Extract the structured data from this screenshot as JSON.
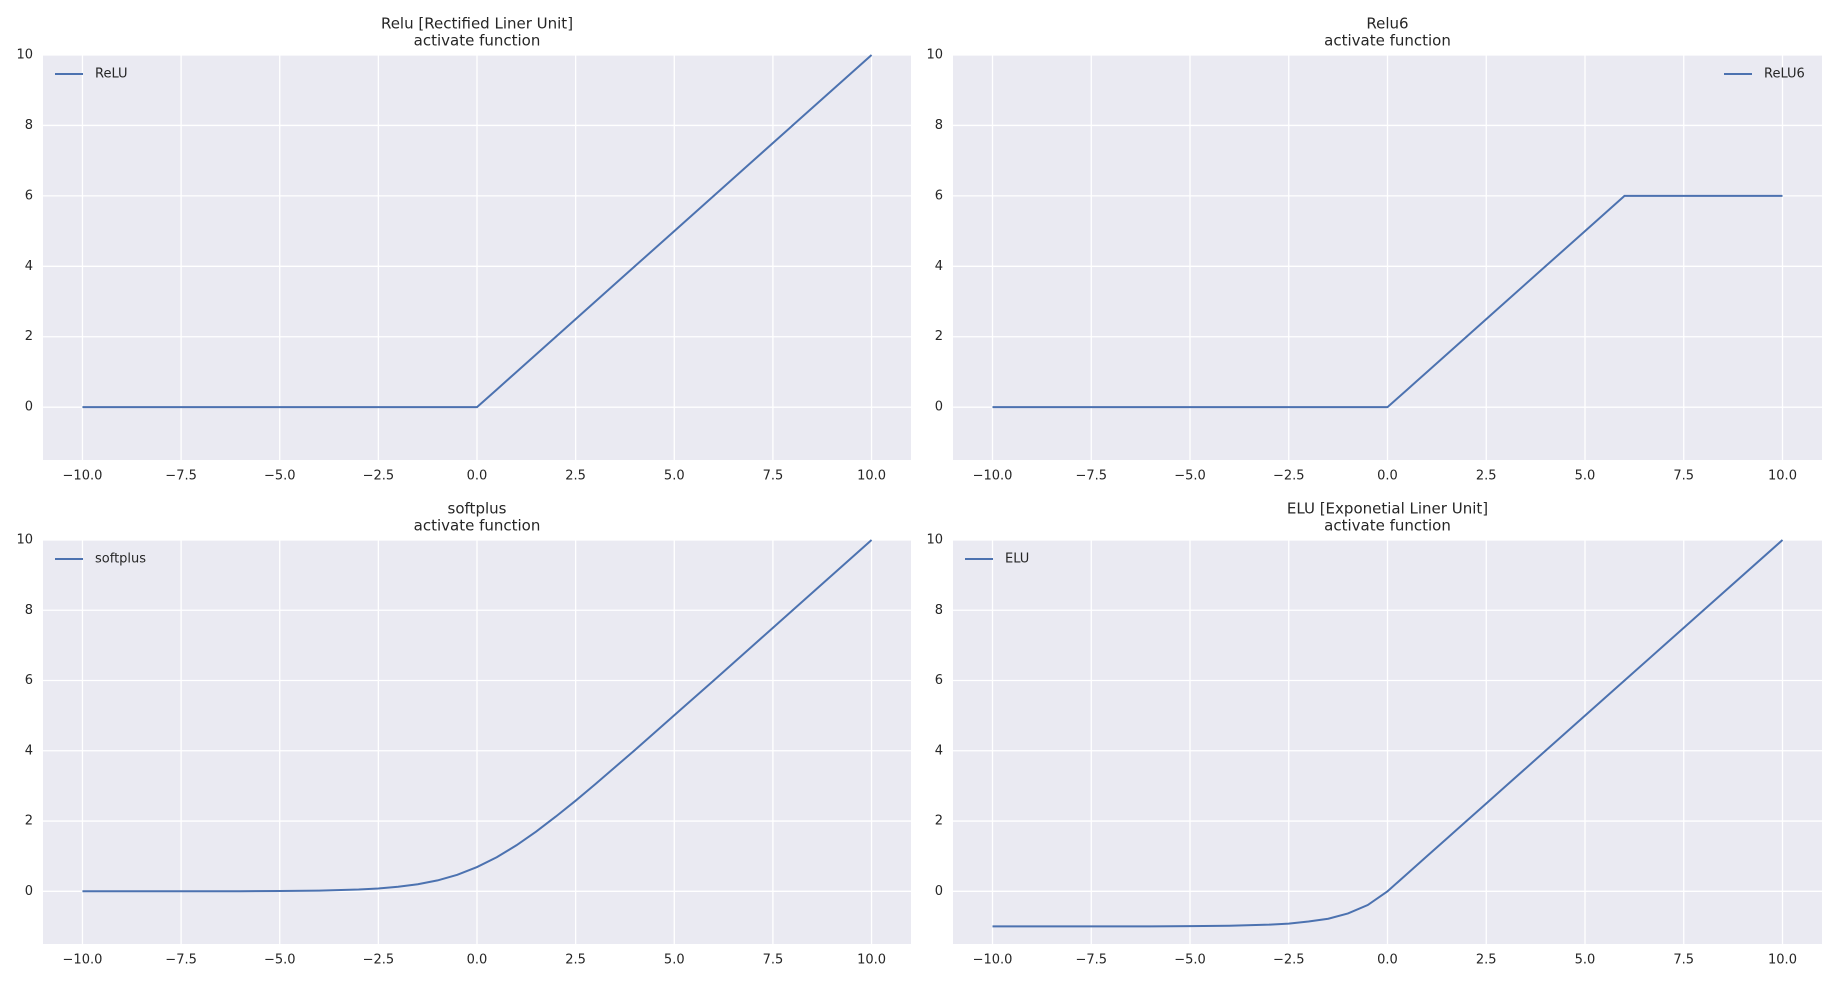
{
  "chart_data": [
    {
      "type": "line",
      "title": "Relu [Rectified Liner Unit]",
      "subtitle": "activate function",
      "x": [
        -10,
        -8,
        -6,
        -5,
        -4,
        -3,
        -2.5,
        -2,
        -1.5,
        -1,
        -0.5,
        0,
        0.5,
        1,
        1.5,
        2,
        2.5,
        3,
        4,
        5,
        6,
        7,
        8,
        10
      ],
      "series": [
        {
          "name": "ReLU",
          "color": "#4c72b0",
          "values": [
            0,
            0,
            0,
            0,
            0,
            0,
            0,
            0,
            0,
            0,
            0,
            0,
            0.5,
            1,
            1.5,
            2,
            2.5,
            3,
            4,
            5,
            6,
            7,
            8,
            10
          ]
        }
      ],
      "xlim": [
        -11,
        11
      ],
      "ylim": [
        -1.5,
        10
      ],
      "xticks": [
        {
          "value": -10,
          "label": "−10.0"
        },
        {
          "value": -7.5,
          "label": "−7.5"
        },
        {
          "value": -5,
          "label": "−5.0"
        },
        {
          "value": -2.5,
          "label": "−2.5"
        },
        {
          "value": 0,
          "label": "0.0"
        },
        2.5,
        {
          "value": 5,
          "label": "5.0"
        },
        7.5,
        {
          "value": 10,
          "label": "10.0"
        }
      ],
      "yticks": [
        0,
        2,
        4,
        6,
        8,
        10
      ],
      "grid": true,
      "legend": "upper left"
    },
    {
      "type": "line",
      "title": "Relu6",
      "subtitle": "activate function",
      "x": [
        -10,
        -8,
        -6,
        -5,
        -4,
        -3,
        -2.5,
        -2,
        -1.5,
        -1,
        -0.5,
        0,
        0.5,
        1,
        1.5,
        2,
        2.5,
        3,
        4,
        5,
        6,
        7,
        8,
        10
      ],
      "series": [
        {
          "name": "ReLU6",
          "color": "#4c72b0",
          "values": [
            0,
            0,
            0,
            0,
            0,
            0,
            0,
            0,
            0,
            0,
            0,
            0,
            0.5,
            1,
            1.5,
            2,
            2.5,
            3,
            4,
            5,
            6,
            6,
            6,
            6
          ]
        }
      ],
      "xlim": [
        -11,
        11
      ],
      "ylim": [
        -1.5,
        10
      ],
      "xticks": [
        {
          "value": -10,
          "label": "−10.0"
        },
        {
          "value": -7.5,
          "label": "−7.5"
        },
        {
          "value": -5,
          "label": "−5.0"
        },
        {
          "value": -2.5,
          "label": "−2.5"
        },
        {
          "value": 0,
          "label": "0.0"
        },
        2.5,
        {
          "value": 5,
          "label": "5.0"
        },
        7.5,
        {
          "value": 10,
          "label": "10.0"
        }
      ],
      "yticks": [
        0,
        2,
        4,
        6,
        8,
        10
      ],
      "grid": true,
      "legend": "upper right"
    },
    {
      "type": "line",
      "title": "softplus",
      "subtitle": "activate function",
      "x": [
        -10,
        -8,
        -6,
        -5,
        -4,
        -3,
        -2.5,
        -2,
        -1.5,
        -1,
        -0.5,
        0,
        0.5,
        1,
        1.5,
        2,
        2.5,
        3,
        4,
        5,
        6,
        7,
        8,
        10
      ],
      "series": [
        {
          "name": "softplus",
          "color": "#4c72b0",
          "values": [
            0,
            0,
            0,
            0.01,
            0.02,
            0.05,
            0.08,
            0.13,
            0.2,
            0.31,
            0.47,
            0.69,
            0.97,
            1.31,
            1.7,
            2.13,
            2.58,
            3.05,
            4.02,
            5.01,
            6,
            7,
            8,
            10
          ]
        }
      ],
      "xlim": [
        -11,
        11
      ],
      "ylim": [
        -1.5,
        10
      ],
      "xticks": [
        {
          "value": -10,
          "label": "−10.0"
        },
        {
          "value": -7.5,
          "label": "−7.5"
        },
        {
          "value": -5,
          "label": "−5.0"
        },
        {
          "value": -2.5,
          "label": "−2.5"
        },
        {
          "value": 0,
          "label": "0.0"
        },
        2.5,
        {
          "value": 5,
          "label": "5.0"
        },
        7.5,
        {
          "value": 10,
          "label": "10.0"
        }
      ],
      "yticks": [
        0,
        2,
        4,
        6,
        8,
        10
      ],
      "grid": true,
      "legend": "upper left"
    },
    {
      "type": "line",
      "title": "ELU [Exponetial Liner Unit]",
      "subtitle": "activate function",
      "x": [
        -10,
        -8,
        -6,
        -5,
        -4,
        -3,
        -2.5,
        -2,
        -1.5,
        -1,
        -0.5,
        0,
        0.5,
        1,
        1.5,
        2,
        2.5,
        3,
        4,
        5,
        6,
        7,
        8,
        10
      ],
      "series": [
        {
          "name": "ELU",
          "color": "#4c72b0",
          "values": [
            -1,
            -1,
            -1,
            -0.99,
            -0.98,
            -0.95,
            -0.92,
            -0.86,
            -0.78,
            -0.63,
            -0.39,
            0,
            0.5,
            1,
            1.5,
            2,
            2.5,
            3,
            4,
            5,
            6,
            7,
            8,
            10
          ]
        }
      ],
      "xlim": [
        -11,
        11
      ],
      "ylim": [
        -1.5,
        10
      ],
      "xticks": [
        {
          "value": -10,
          "label": "−10.0"
        },
        {
          "value": -7.5,
          "label": "−7.5"
        },
        {
          "value": -5,
          "label": "−5.0"
        },
        {
          "value": -2.5,
          "label": "−2.5"
        },
        {
          "value": 0,
          "label": "0.0"
        },
        2.5,
        {
          "value": 5,
          "label": "5.0"
        },
        7.5,
        {
          "value": 10,
          "label": "10.0"
        }
      ],
      "yticks": [
        0,
        2,
        4,
        6,
        8,
        10
      ],
      "grid": true,
      "legend": "upper left"
    }
  ]
}
